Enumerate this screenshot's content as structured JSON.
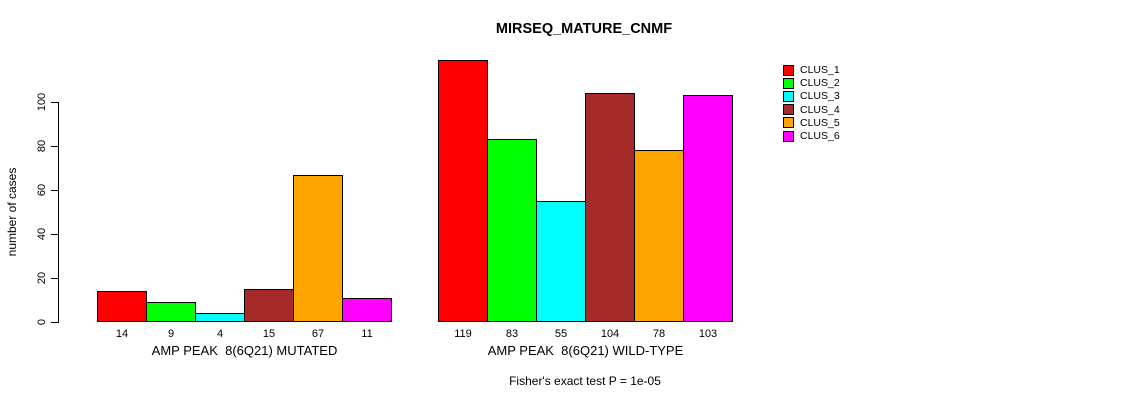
{
  "chart_data": {
    "type": "bar",
    "title": "MIRSEQ_MATURE_CNMF",
    "ylabel": "number of cases",
    "ylim": [
      0,
      119
    ],
    "yticks": [
      0,
      20,
      40,
      60,
      80,
      100
    ],
    "grid": false,
    "legend_position": "right",
    "clusters": [
      "CLUS_1",
      "CLUS_2",
      "CLUS_3",
      "CLUS_4",
      "CLUS_5",
      "CLUS_6"
    ],
    "colors": [
      "#FF0000",
      "#00FF00",
      "#00FFFF",
      "#A52A2A",
      "#FFA500",
      "#FF00FF"
    ],
    "groups": [
      {
        "xlabel": "AMP PEAK  8(6Q21) MUTATED",
        "values": [
          14,
          9,
          4,
          15,
          67,
          11
        ]
      },
      {
        "xlabel": "AMP PEAK  8(6Q21) WILD-TYPE",
        "values": [
          119,
          83,
          55,
          104,
          78,
          103
        ]
      }
    ],
    "annotation": "Fisher's exact test P = 1e-05"
  }
}
